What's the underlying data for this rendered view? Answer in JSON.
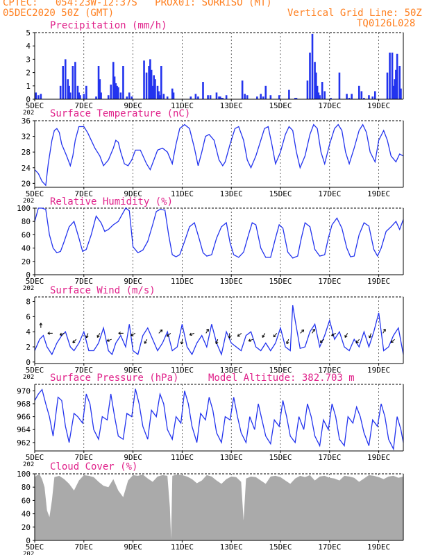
{
  "header": {
    "left_line1": "CPTEC:   054:23W-12:37S   PROX01: SORRISO (MT)",
    "left_line2": "05DEC2020 50Z (GMT)",
    "right_line1": "Vertical Grid Line: 50Z",
    "right_line2": "TQ0126L028"
  },
  "colors": {
    "header": "#ff7f1f",
    "title": "#e0218a",
    "series": "#2233ee",
    "bars": "#2233ee",
    "cloud": "#aaaaaa",
    "axis": "#000000"
  },
  "x_axis": {
    "tick_labels": [
      "5DEC",
      "7DEC",
      "9DEC",
      "11DEC",
      "13DEC",
      "15DEC",
      "17DEC",
      "19DEC"
    ],
    "tick_days": [
      0,
      2,
      4,
      6,
      8,
      10,
      12,
      14
    ],
    "domain_days": [
      0,
      15
    ],
    "year_fragment": "202"
  },
  "panels": [
    {
      "key": "precip",
      "title": "Precipitation (mm/h)",
      "extra": "",
      "ylim": [
        0,
        5
      ],
      "yticks": [
        0,
        1,
        2,
        3,
        4,
        5
      ]
    },
    {
      "key": "temp",
      "title": "Surface Temperature (nC)",
      "extra": "",
      "ylim": [
        19,
        36
      ],
      "yticks": [
        20,
        24,
        28,
        32,
        36
      ]
    },
    {
      "key": "rh",
      "title": "Relative Humidity (%)",
      "extra": "",
      "ylim": [
        0,
        100
      ],
      "yticks": [
        0,
        20,
        40,
        60,
        80,
        100
      ]
    },
    {
      "key": "wind",
      "title": "Surface Wind (m/s)",
      "extra": "",
      "ylim": [
        -0.2,
        8.6
      ],
      "yticks": [
        0,
        2,
        4,
        6,
        8
      ]
    },
    {
      "key": "pres",
      "title": "Surface Pressure (hPa)",
      "extra": "Model Altitude: 382.703 m",
      "ylim": [
        960.7,
        971
      ],
      "yticks": [
        962,
        964,
        966,
        968,
        970
      ]
    },
    {
      "key": "cloud",
      "title": "Cloud Cover (%)",
      "extra": "",
      "ylim": [
        0,
        100
      ],
      "yticks": [
        0,
        20,
        40,
        60,
        80,
        100
      ]
    }
  ],
  "chart_data": [
    {
      "type": "bar",
      "title": "Precipitation (mm/h)",
      "xlabel": "",
      "ylabel": "",
      "ylim": [
        0,
        5
      ],
      "x_unit": "days since 05DEC2020 50Z",
      "x": [
        0.05,
        0.15,
        0.25,
        1.05,
        1.15,
        1.25,
        1.35,
        1.4,
        1.45,
        1.55,
        1.65,
        1.75,
        1.8,
        1.85,
        2.0,
        2.1,
        2.5,
        2.6,
        2.65,
        2.7,
        3.0,
        3.1,
        3.2,
        3.25,
        3.3,
        3.35,
        3.4,
        3.5,
        3.6,
        3.75,
        3.85,
        3.95,
        4.45,
        4.55,
        4.65,
        4.7,
        4.75,
        4.8,
        4.85,
        4.9,
        5.0,
        5.05,
        5.1,
        5.15,
        5.25,
        5.4,
        5.6,
        5.65,
        6.35,
        6.55,
        6.65,
        6.85,
        7.05,
        7.15,
        7.4,
        7.5,
        7.55,
        7.6,
        7.65,
        7.8,
        8.45,
        8.55,
        8.65,
        9.05,
        9.2,
        9.3,
        9.4,
        9.6,
        9.95,
        10.35,
        10.6,
        10.65,
        11.1,
        11.2,
        11.3,
        11.4,
        11.45,
        11.5,
        11.55,
        11.6,
        11.7,
        11.8,
        12.05,
        12.4,
        12.7,
        12.8,
        12.9,
        13.2,
        13.3,
        13.4,
        13.6,
        13.75,
        13.85,
        14.35,
        14.45,
        14.55,
        14.6,
        14.65,
        14.7,
        14.75,
        14.85,
        14.9
      ],
      "values": [
        0.5,
        0.3,
        0.4,
        1.0,
        2.5,
        3.0,
        1.5,
        1.0,
        0.5,
        2.5,
        2.8,
        1.0,
        0.5,
        0.3,
        0.4,
        1.0,
        0.2,
        2.5,
        1.5,
        0.5,
        0.3,
        1.1,
        2.8,
        1.7,
        1.2,
        1.0,
        0.9,
        0.5,
        2.5,
        0.2,
        0.5,
        0.2,
        2.9,
        2.0,
        2.5,
        3.0,
        2.2,
        1.0,
        1.8,
        1.5,
        1.0,
        0.6,
        0.3,
        2.5,
        0.4,
        0.2,
        0.8,
        0.5,
        0.2,
        0.4,
        0.2,
        1.3,
        0.3,
        0.3,
        0.5,
        0.2,
        0.2,
        0.1,
        0.1,
        0.3,
        1.4,
        0.4,
        0.3,
        0.2,
        0.4,
        0.2,
        1.0,
        0.3,
        0.3,
        0.7,
        0.1,
        0.1,
        1.4,
        3.5,
        4.9,
        2.8,
        2.0,
        1.0,
        0.5,
        0.3,
        1.3,
        0.6,
        0.1,
        2.0,
        0.4,
        0.1,
        0.4,
        1.0,
        0.6,
        0.1,
        0.3,
        0.2,
        0.6,
        2.0,
        3.5,
        3.5,
        1.0,
        1.5,
        2.2,
        3.4,
        2.5,
        0.8
      ]
    },
    {
      "type": "line",
      "title": "Surface Temperature (nC)",
      "xlabel": "",
      "ylabel": "",
      "ylim": [
        19,
        36
      ],
      "x_unit": "days since 05DEC2020 50Z",
      "x": [
        0,
        0.15,
        0.3,
        0.45,
        0.55,
        0.7,
        0.8,
        0.9,
        1.0,
        1.1,
        1.3,
        1.45,
        1.55,
        1.65,
        1.8,
        2.0,
        2.15,
        2.3,
        2.45,
        2.65,
        2.8,
        3.0,
        3.2,
        3.3,
        3.4,
        3.5,
        3.65,
        3.8,
        3.95,
        4.1,
        4.3,
        4.55,
        4.7,
        4.85,
        5.0,
        5.2,
        5.4,
        5.6,
        5.75,
        5.9,
        6.1,
        6.3,
        6.5,
        6.65,
        6.8,
        6.95,
        7.1,
        7.3,
        7.5,
        7.65,
        7.75,
        7.95,
        8.15,
        8.3,
        8.5,
        8.65,
        8.8,
        9.0,
        9.2,
        9.35,
        9.5,
        9.65,
        9.8,
        10.0,
        10.2,
        10.35,
        10.5,
        10.65,
        10.8,
        11.0,
        11.2,
        11.35,
        11.5,
        11.65,
        11.8,
        12.0,
        12.2,
        12.35,
        12.5,
        12.65,
        12.8,
        13.0,
        13.2,
        13.35,
        13.5,
        13.65,
        13.85,
        14.0,
        14.2,
        14.35,
        14.5,
        14.7,
        14.85,
        15.0
      ],
      "values": [
        23.5,
        22.5,
        20.5,
        19.5,
        25,
        31,
        33.5,
        34,
        33,
        30,
        27,
        24.5,
        27,
        31,
        34.5,
        34.5,
        33,
        31,
        29,
        27,
        24.5,
        26,
        29,
        31,
        30.5,
        28,
        25,
        24.5,
        26,
        28.5,
        28.5,
        25,
        23.5,
        26,
        28.5,
        29,
        28,
        25,
        30,
        34,
        35,
        34,
        29,
        24.5,
        28,
        32,
        32.5,
        31,
        26,
        24.5,
        25.5,
        30,
        34,
        34.5,
        31,
        26,
        24,
        27,
        31,
        34,
        34.5,
        30,
        25,
        28,
        32.5,
        34.5,
        33.5,
        28,
        24,
        27,
        32.5,
        35,
        34,
        28,
        25,
        30,
        34,
        35,
        33.5,
        28,
        25,
        29,
        33.5,
        35,
        33,
        28,
        25.5,
        31,
        33.5,
        31,
        27,
        25.5,
        27.5,
        27
      ]
    },
    {
      "type": "line",
      "title": "Relative Humidity (%)",
      "xlabel": "",
      "ylabel": "",
      "ylim": [
        0,
        100
      ],
      "x_unit": "days since 05DEC2020 50Z",
      "x": [
        0,
        0.15,
        0.3,
        0.45,
        0.6,
        0.75,
        0.9,
        1.05,
        1.2,
        1.4,
        1.6,
        1.8,
        1.95,
        2.1,
        2.3,
        2.5,
        2.7,
        2.85,
        3.0,
        3.2,
        3.4,
        3.55,
        3.7,
        3.85,
        4.0,
        4.2,
        4.4,
        4.6,
        4.8,
        4.95,
        5.1,
        5.3,
        5.45,
        5.6,
        5.75,
        5.9,
        6.1,
        6.3,
        6.5,
        6.7,
        6.85,
        7.0,
        7.2,
        7.4,
        7.6,
        7.8,
        7.95,
        8.1,
        8.3,
        8.5,
        8.7,
        8.85,
        9.0,
        9.2,
        9.4,
        9.6,
        9.8,
        9.95,
        10.1,
        10.3,
        10.5,
        10.7,
        10.85,
        11.0,
        11.2,
        11.4,
        11.6,
        11.8,
        11.95,
        12.1,
        12.3,
        12.5,
        12.7,
        12.85,
        13.0,
        13.2,
        13.4,
        13.6,
        13.8,
        13.95,
        14.1,
        14.3,
        14.5,
        14.7,
        14.85,
        15.0
      ],
      "values": [
        80,
        100,
        100,
        98,
        60,
        40,
        33,
        35,
        50,
        72,
        80,
        55,
        35,
        38,
        60,
        88,
        78,
        65,
        68,
        75,
        80,
        90,
        100,
        96,
        42,
        33,
        37,
        50,
        75,
        95,
        98,
        97,
        60,
        30,
        27,
        30,
        50,
        72,
        78,
        53,
        33,
        28,
        30,
        55,
        72,
        78,
        48,
        30,
        26,
        34,
        60,
        78,
        75,
        40,
        26,
        26,
        55,
        75,
        70,
        34,
        25,
        28,
        55,
        78,
        72,
        38,
        28,
        30,
        55,
        75,
        85,
        70,
        40,
        27,
        28,
        60,
        78,
        73,
        38,
        28,
        40,
        65,
        72,
        80,
        68,
        83
      ]
    },
    {
      "type": "line",
      "title": "Surface Wind (m/s)",
      "xlabel": "",
      "ylabel": "",
      "ylim": [
        -0.2,
        8.6
      ],
      "x_unit": "days since 05DEC2020 50Z",
      "x": [
        0,
        0.2,
        0.35,
        0.5,
        0.7,
        0.9,
        1.1,
        1.25,
        1.45,
        1.6,
        1.8,
        2.0,
        2.2,
        2.4,
        2.6,
        2.8,
        3.0,
        3.15,
        3.3,
        3.5,
        3.7,
        3.85,
        4.0,
        4.2,
        4.4,
        4.6,
        4.8,
        5.0,
        5.2,
        5.4,
        5.6,
        5.8,
        6.0,
        6.2,
        6.4,
        6.6,
        6.8,
        7.0,
        7.2,
        7.4,
        7.6,
        7.8,
        8.0,
        8.2,
        8.4,
        8.6,
        8.8,
        9.0,
        9.2,
        9.4,
        9.6,
        9.8,
        10.0,
        10.2,
        10.4,
        10.5,
        10.6,
        10.8,
        11.0,
        11.2,
        11.4,
        11.6,
        11.8,
        12.0,
        12.2,
        12.4,
        12.6,
        12.8,
        13.0,
        13.2,
        13.4,
        13.6,
        13.8,
        14.0,
        14.2,
        14.4,
        14.6,
        14.8,
        15.0
      ],
      "values": [
        1.5,
        3,
        3.5,
        2,
        1,
        2.5,
        3.5,
        4,
        2,
        1.5,
        2.5,
        4,
        1.5,
        1.5,
        2.5,
        4.5,
        1.5,
        1,
        2.5,
        3.5,
        2,
        5,
        1.5,
        1,
        3.5,
        4.5,
        3,
        1.5,
        2.5,
        4,
        1.5,
        2,
        5,
        2,
        1,
        2.5,
        3.5,
        2,
        5,
        2.5,
        1,
        4,
        2.5,
        2,
        1.5,
        3.5,
        4,
        2,
        1.5,
        2.5,
        1.5,
        2.5,
        4.5,
        2,
        1.5,
        7.5,
        5.5,
        1.8,
        2,
        4,
        5,
        2,
        3.5,
        5.5,
        3,
        4,
        2,
        1.5,
        3,
        2,
        4,
        2,
        4,
        6.5,
        1.5,
        2,
        3.5,
        4.5,
        1
      ]
    },
    {
      "type": "line",
      "title": "Surface Pressure (hPa)",
      "xlabel": "",
      "ylabel": "",
      "ylim": [
        960.7,
        971
      ],
      "x_unit": "days since 05DEC2020 50Z",
      "x": [
        0,
        0.15,
        0.3,
        0.45,
        0.6,
        0.75,
        0.95,
        1.1,
        1.25,
        1.4,
        1.6,
        1.75,
        1.95,
        2.1,
        2.25,
        2.4,
        2.6,
        2.75,
        2.95,
        3.1,
        3.25,
        3.4,
        3.6,
        3.75,
        3.95,
        4.1,
        4.25,
        4.4,
        4.6,
        4.75,
        4.95,
        5.1,
        5.25,
        5.4,
        5.6,
        5.75,
        5.95,
        6.1,
        6.25,
        6.4,
        6.6,
        6.75,
        6.95,
        7.1,
        7.25,
        7.4,
        7.6,
        7.75,
        7.95,
        8.1,
        8.25,
        8.4,
        8.6,
        8.75,
        8.95,
        9.1,
        9.25,
        9.4,
        9.6,
        9.75,
        9.95,
        10.1,
        10.25,
        10.4,
        10.6,
        10.75,
        10.95,
        11.1,
        11.25,
        11.4,
        11.6,
        11.75,
        11.95,
        12.1,
        12.25,
        12.4,
        12.6,
        12.75,
        12.95,
        13.1,
        13.25,
        13.4,
        13.6,
        13.75,
        13.95,
        14.1,
        14.25,
        14.4,
        14.6,
        14.75,
        14.9,
        15.0
      ],
      "values": [
        968.5,
        969.5,
        970.2,
        968,
        966,
        963,
        969,
        968.5,
        964.5,
        962,
        966.5,
        966,
        965,
        969.5,
        968,
        964,
        962.5,
        966,
        965.5,
        969.5,
        966,
        963,
        962.5,
        966.5,
        966,
        970.3,
        968,
        964.5,
        962.5,
        967,
        966,
        969.5,
        968,
        964,
        962.5,
        966,
        965,
        970,
        968,
        964.5,
        962,
        966.5,
        965.5,
        969,
        967,
        963.5,
        962,
        966,
        965.5,
        969,
        966,
        963.5,
        962,
        966,
        964,
        968,
        965.5,
        963,
        961.8,
        965.5,
        964.5,
        968.5,
        966,
        963,
        962,
        966,
        964,
        968,
        966,
        963,
        961.5,
        965.5,
        964,
        968,
        966,
        962.5,
        961.5,
        966,
        965,
        967.5,
        966,
        963.5,
        961.5,
        965.5,
        964.5,
        968,
        966,
        962.5,
        961,
        966,
        964,
        962
      ]
    },
    {
      "type": "area",
      "title": "Cloud Cover (%)",
      "xlabel": "",
      "ylabel": "",
      "ylim": [
        0,
        100
      ],
      "x_unit": "days since 05DEC2020 50Z",
      "x": [
        0,
        0.1,
        0.2,
        0.3,
        0.4,
        0.5,
        0.6,
        0.7,
        0.8,
        1.0,
        1.2,
        1.4,
        1.6,
        1.8,
        2.0,
        2.2,
        2.4,
        2.6,
        2.8,
        3.0,
        3.2,
        3.4,
        3.6,
        3.8,
        4.0,
        4.2,
        4.4,
        4.6,
        4.8,
        5.0,
        5.2,
        5.4,
        5.5,
        5.55,
        5.6,
        5.8,
        6.0,
        6.2,
        6.4,
        6.6,
        6.8,
        7.0,
        7.2,
        7.4,
        7.6,
        7.8,
        8.0,
        8.2,
        8.4,
        8.5,
        8.6,
        8.8,
        9.0,
        9.2,
        9.4,
        9.6,
        9.8,
        10.0,
        10.2,
        10.4,
        10.6,
        10.8,
        11.0,
        11.2,
        11.4,
        11.6,
        11.8,
        12.0,
        12.2,
        12.4,
        12.6,
        12.8,
        13.0,
        13.2,
        13.4,
        13.6,
        13.8,
        14.0,
        14.2,
        14.4,
        14.6,
        14.8,
        15.0
      ],
      "values": [
        95,
        98,
        99,
        92,
        80,
        45,
        35,
        60,
        95,
        97,
        92,
        85,
        75,
        90,
        98,
        97,
        95,
        88,
        82,
        80,
        92,
        75,
        65,
        90,
        98,
        97,
        99,
        93,
        88,
        96,
        98,
        97,
        50,
        2,
        97,
        99,
        98,
        96,
        92,
        86,
        90,
        98,
        96,
        90,
        85,
        92,
        96,
        95,
        88,
        30,
        93,
        96,
        95,
        90,
        85,
        96,
        97,
        95,
        90,
        85,
        93,
        97,
        95,
        98,
        90,
        96,
        97,
        94,
        93,
        90,
        97,
        96,
        94,
        88,
        93,
        98,
        97,
        95,
        92,
        96,
        97,
        94,
        96
      ]
    }
  ]
}
